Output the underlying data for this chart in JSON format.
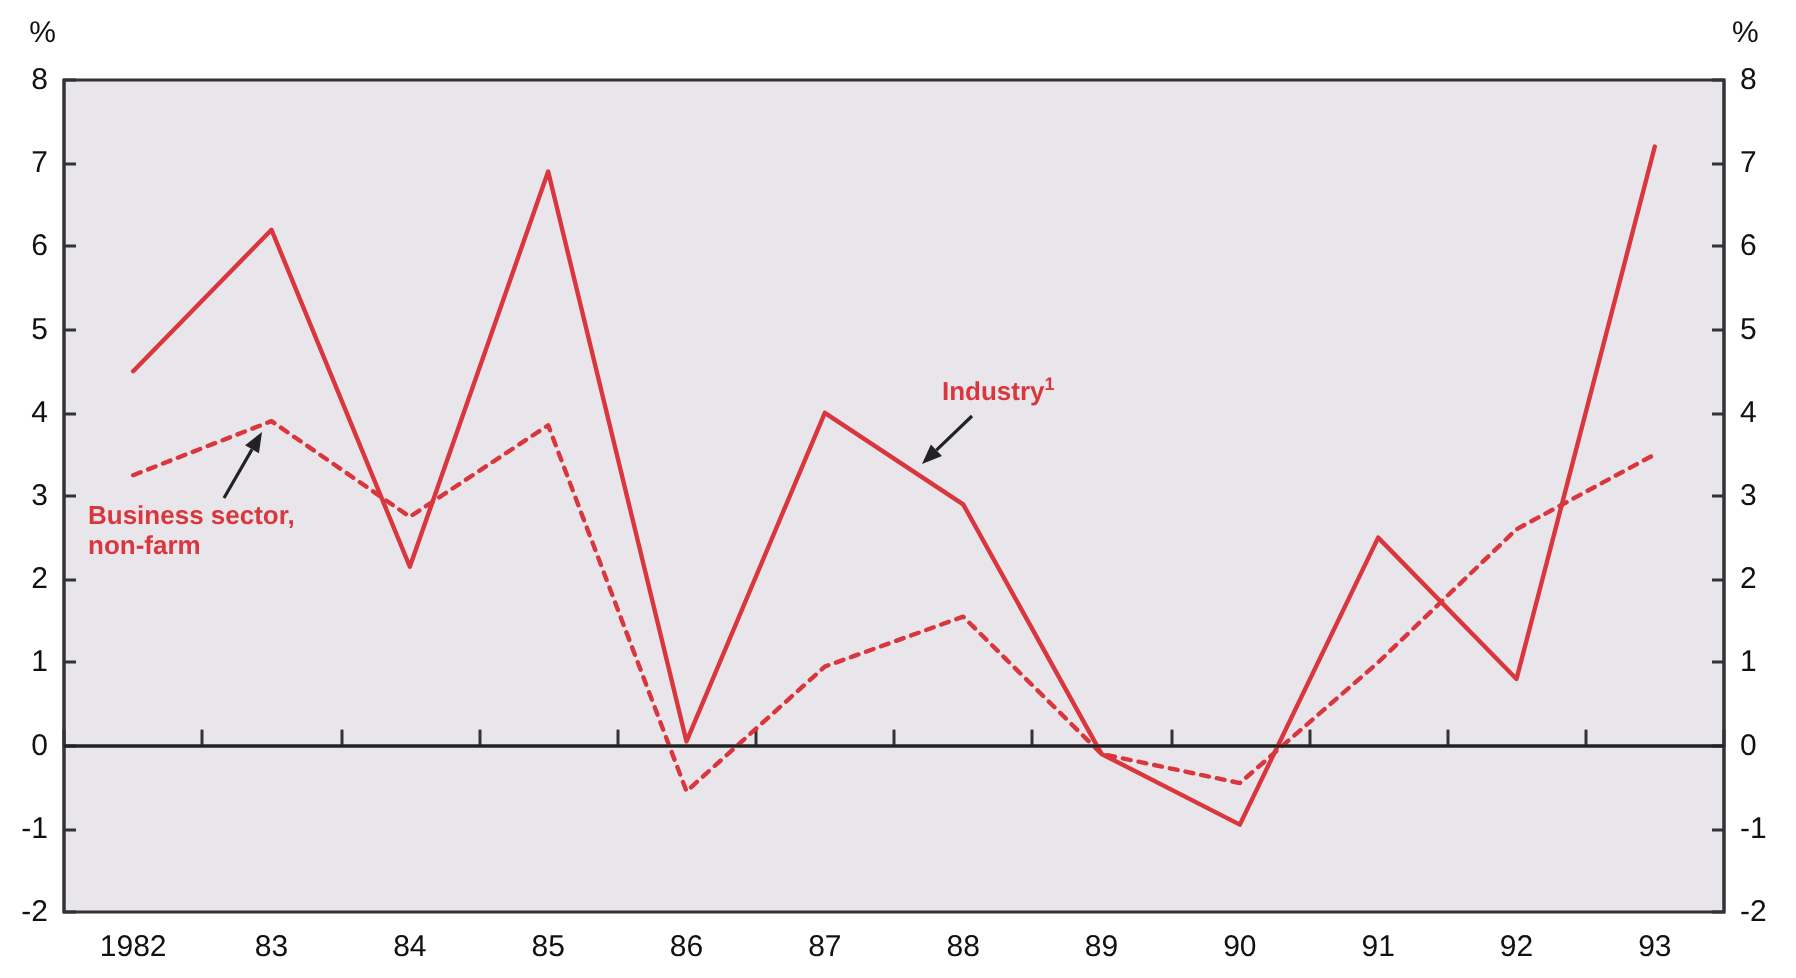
{
  "chart_data": {
    "type": "line",
    "ylabel": "%",
    "y2label": "%",
    "categories": [
      "1982",
      "83",
      "84",
      "85",
      "86",
      "87",
      "88",
      "89",
      "90",
      "91",
      "92",
      "93"
    ],
    "series": [
      {
        "name": "Industry$^{1}$",
        "color": "#d9363e",
        "line_style": "solid",
        "values": [
          4.5,
          6.2,
          2.15,
          6.9,
          0.05,
          4.0,
          2.9,
          -0.1,
          -0.95,
          2.5,
          0.8,
          7.2
        ]
      },
      {
        "name": "Business sector, non-farm",
        "color": "#d9363e",
        "line_style": "dashed",
        "values": [
          3.25,
          3.9,
          2.75,
          3.85,
          -0.55,
          0.95,
          1.55,
          -0.1,
          -0.45,
          1.0,
          2.6,
          3.5
        ]
      }
    ],
    "ylim": [
      -2,
      8
    ],
    "yticks": [
      -2,
      -1,
      0,
      1,
      2,
      3,
      4,
      5,
      6,
      7,
      8
    ],
    "y2lim": [
      -2,
      8
    ],
    "y2ticks": [
      -2,
      -1,
      0,
      1,
      2,
      3,
      4,
      5,
      6,
      7,
      8
    ],
    "ref_lines": [
      {
        "axis": "y",
        "value": 0,
        "color": "#222222"
      }
    ],
    "grid": false,
    "legend": false,
    "marker": "none"
  }
}
